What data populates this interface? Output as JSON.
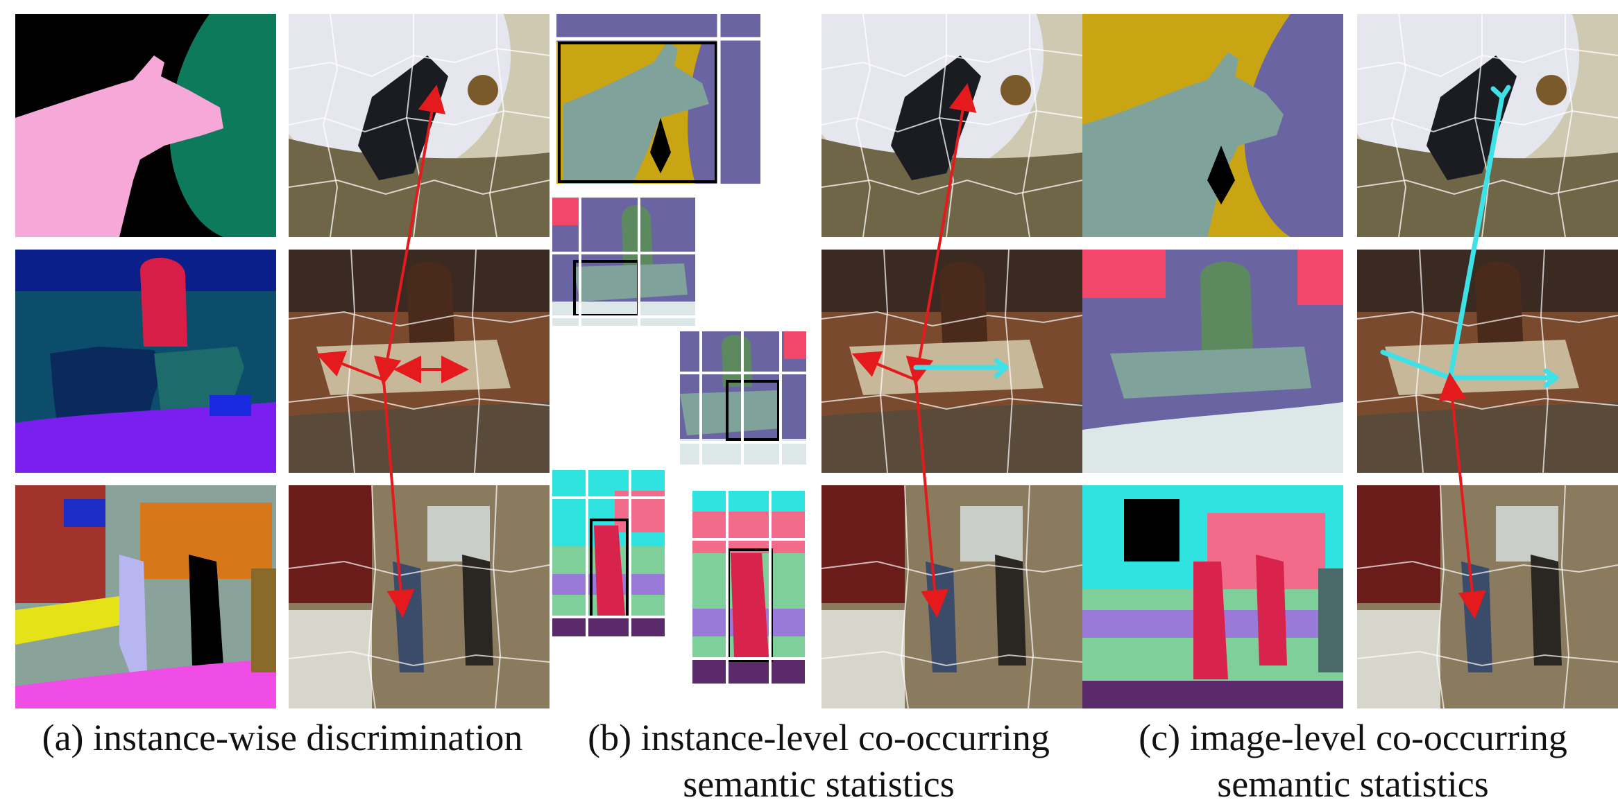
{
  "figure": {
    "captions": {
      "a": "(a) instance-wise discrimination",
      "b_line1": "(b) instance-level co-occurring",
      "b_line2": "semantic statistics",
      "c_line1": "(c) image-level co-occurring",
      "c_line2": "semantic statistics"
    },
    "colors": {
      "arrow_red": "#e41a1c",
      "arrow_cyan": "#3fe0e6",
      "seg_cow": "#7fa39a",
      "seg_sky_purple": "#6a64a3",
      "seg_yellow": "#c9a514",
      "seg_pink": "#f26b8a",
      "seg_cyan": "#2ee3e0",
      "seg_person": "#d8234d"
    },
    "panel_names": [
      "seg-map-cow",
      "seg-map-cows-street",
      "seg-map-kitchen",
      "photo-clock-cow",
      "photo-cows-street",
      "photo-kitchen",
      "crop-cow",
      "crop-cows-left",
      "crop-cows-right",
      "crop-kitchen-person-left",
      "crop-kitchen-person-right",
      "photo-clock-cow-b",
      "seg-cow-c",
      "photo-clock-cow-c",
      "photo-cows-street-b",
      "seg-cows-street-c",
      "photo-cows-street-c",
      "photo-kitchen-b",
      "seg-kitchen-c",
      "photo-kitchen-c"
    ]
  }
}
